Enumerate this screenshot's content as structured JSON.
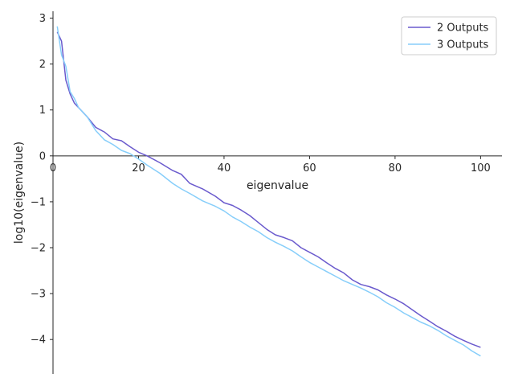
{
  "chart_data": {
    "type": "line",
    "xlabel": "eigenvalue",
    "ylabel": "log10(eigenvalue)",
    "xlim": [
      0,
      105
    ],
    "ylim": [
      -4.75,
      3.15
    ],
    "xticks": [
      0,
      20,
      40,
      60,
      80,
      100
    ],
    "yticks": [
      3,
      2,
      1,
      0,
      -1,
      -2,
      -3,
      -4
    ],
    "legend_position": "top-right",
    "grid": false,
    "series": [
      {
        "name": "2 Outputs",
        "color": "#6a5acd",
        "x": [
          1,
          2,
          3,
          4,
          5,
          6,
          8,
          10,
          12,
          14,
          16,
          18,
          20,
          22,
          25,
          28,
          30,
          32,
          35,
          38,
          40,
          42,
          44,
          46,
          48,
          50,
          52,
          54,
          56,
          58,
          60,
          62,
          64,
          66,
          68,
          70,
          72,
          74,
          76,
          78,
          80,
          82,
          84,
          86,
          88,
          90,
          92,
          94,
          96,
          98,
          100
        ],
        "y": [
          2.7,
          2.5,
          1.65,
          1.35,
          1.15,
          1.05,
          0.85,
          0.62,
          0.52,
          0.37,
          0.33,
          0.2,
          0.08,
          0.0,
          -0.15,
          -0.32,
          -0.4,
          -0.6,
          -0.72,
          -0.88,
          -1.02,
          -1.08,
          -1.18,
          -1.3,
          -1.45,
          -1.6,
          -1.72,
          -1.78,
          -1.85,
          -2.0,
          -2.1,
          -2.2,
          -2.33,
          -2.45,
          -2.55,
          -2.7,
          -2.8,
          -2.85,
          -2.92,
          -3.03,
          -3.12,
          -3.22,
          -3.35,
          -3.48,
          -3.6,
          -3.72,
          -3.82,
          -3.93,
          -4.02,
          -4.1,
          -4.17
        ]
      },
      {
        "name": "3 Outputs",
        "color": "#87cefa",
        "x": [
          1,
          2,
          3,
          4,
          5,
          6,
          8,
          10,
          12,
          14,
          16,
          18,
          20,
          22,
          25,
          28,
          30,
          32,
          35,
          38,
          40,
          42,
          44,
          46,
          48,
          50,
          52,
          54,
          56,
          58,
          60,
          62,
          64,
          66,
          68,
          70,
          72,
          74,
          76,
          78,
          80,
          82,
          84,
          86,
          88,
          90,
          92,
          94,
          96,
          98,
          100
        ],
        "y": [
          2.82,
          2.2,
          1.95,
          1.4,
          1.25,
          1.05,
          0.85,
          0.55,
          0.35,
          0.25,
          0.12,
          0.05,
          -0.07,
          -0.2,
          -0.38,
          -0.6,
          -0.72,
          -0.82,
          -0.98,
          -1.1,
          -1.2,
          -1.33,
          -1.43,
          -1.55,
          -1.65,
          -1.78,
          -1.88,
          -1.97,
          -2.07,
          -2.2,
          -2.32,
          -2.42,
          -2.52,
          -2.62,
          -2.72,
          -2.8,
          -2.88,
          -2.97,
          -3.07,
          -3.2,
          -3.3,
          -3.42,
          -3.52,
          -3.62,
          -3.7,
          -3.8,
          -3.92,
          -4.02,
          -4.12,
          -4.25,
          -4.36
        ]
      }
    ]
  }
}
